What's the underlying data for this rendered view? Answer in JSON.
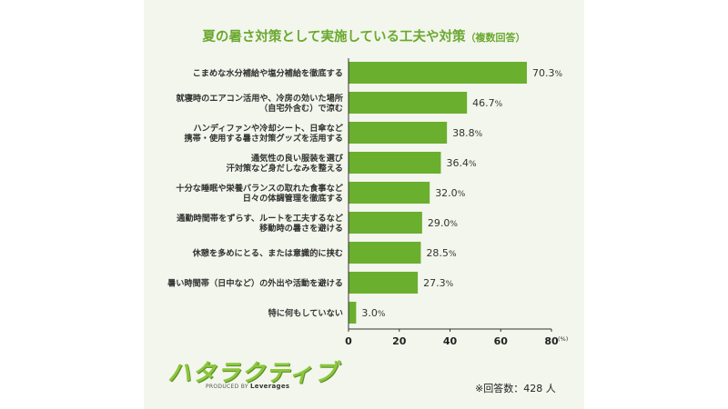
{
  "title": "夏の暑さ対策として実施している工夫や対策",
  "title_note": "（複数回答）",
  "chart_data": {
    "type": "bar",
    "orientation": "horizontal",
    "categories": [
      [
        "こまめな水分補給や塩分補給を徹底する"
      ],
      [
        "就寝時のエアコン活用や、冷房の効いた場所",
        "（自宅外含む）で涼む"
      ],
      [
        "ハンディファンや冷却シート、日傘など",
        "携帯・使用する暑さ対策グッズを活用する"
      ],
      [
        "通気性の良い服装を選び",
        "汗対策など身だしなみを整える"
      ],
      [
        "十分な睡眠や栄養バランスの取れた食事など",
        "日々の体調管理を徹底する"
      ],
      [
        "通勤時間帯をずらす、ルートを工夫するなど",
        "移動時の暑さを避ける"
      ],
      [
        "休憩を多めにとる、または意識的に挟む"
      ],
      [
        "暑い時間帯（日中など）の外出や活動を避ける"
      ],
      [
        "特に何もしていない"
      ]
    ],
    "values": [
      70.3,
      46.7,
      38.8,
      36.4,
      32.0,
      29.0,
      28.5,
      27.3,
      3.0
    ],
    "value_labels": [
      "70.3",
      "46.7",
      "38.8",
      "36.4",
      "32.0",
      "29.0",
      "28.5",
      "27.3",
      "3.0"
    ],
    "value_suffix": "%",
    "xlim": [
      0,
      80
    ],
    "xticks": [
      "0",
      "20",
      "40",
      "60",
      "80"
    ],
    "x_unit": "(%)",
    "bar_color": "#6aaf2e",
    "grid": false
  },
  "logo": {
    "text": "ハタラクティブ",
    "sub_prefix": "PRODUCED BY",
    "sub_brand": "Leverages"
  },
  "respondents": "※回答数：428 人"
}
